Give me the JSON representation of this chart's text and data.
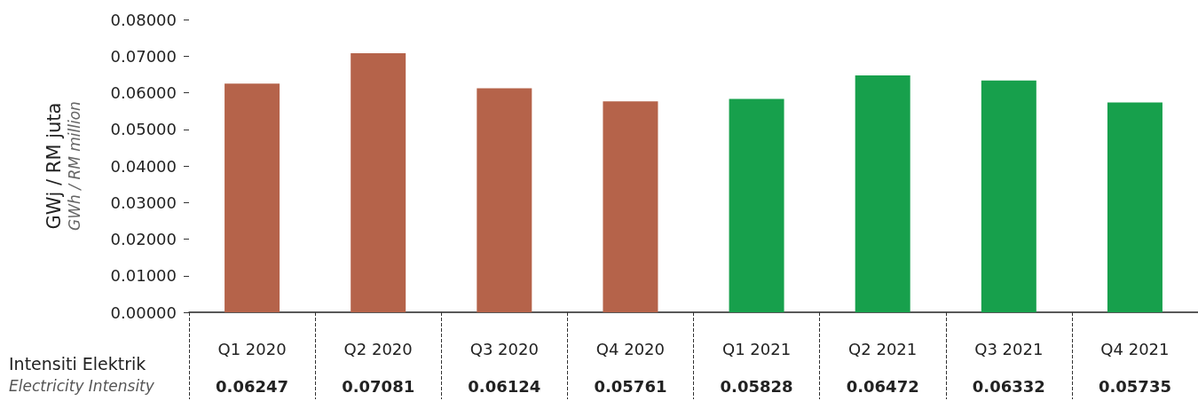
{
  "chart_data": {
    "type": "bar",
    "ylabel": "GWj / RM juta\nGWh / RM million",
    "categories": [
      "Q1 2020",
      "Q2 2020",
      "Q3 2020",
      "Q4 2020",
      "Q1 2021",
      "Q2 2021",
      "Q3 2021",
      "Q4 2021"
    ],
    "values": [
      0.06247,
      0.07081,
      0.06124,
      0.05761,
      0.05828,
      0.06472,
      0.06332,
      0.05735
    ],
    "colors": [
      "#b5634a",
      "#b5634a",
      "#b5634a",
      "#b5634a",
      "#17a04c",
      "#17a04c",
      "#17a04c",
      "#17a04c"
    ],
    "ylim": [
      0,
      0.08
    ],
    "yticks": [
      {
        "value": 0,
        "label": "0.00000"
      },
      {
        "value": 0.01,
        "label": "0.01000"
      },
      {
        "value": 0.02,
        "label": "0.02000"
      },
      {
        "value": 0.03,
        "label": "0.03000"
      },
      {
        "value": 0.04,
        "label": "0.04000"
      },
      {
        "value": 0.05,
        "label": "0.05000"
      },
      {
        "value": 0.06,
        "label": "0.06000"
      },
      {
        "value": 0.07,
        "label": "0.07000"
      },
      {
        "value": 0.08,
        "label": "0.08000"
      }
    ],
    "annotations": [
      "Intensiti Elektrik",
      "Electricity Intensity"
    ],
    "data_labels": true
  }
}
